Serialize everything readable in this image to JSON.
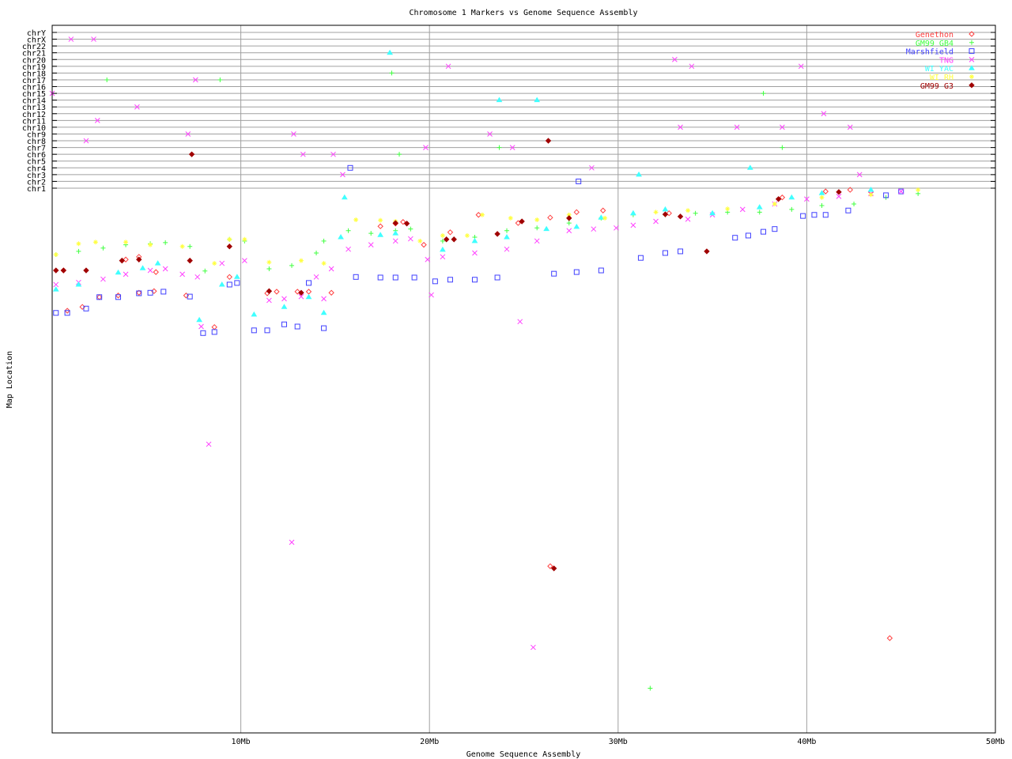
{
  "chart_data": {
    "type": "scatter",
    "title": "Chromosome 1 Markers vs Genome Sequence Assembly",
    "xlabel": "Genome Sequence Assembly",
    "ylabel": "Map Location",
    "xlim": [
      0,
      50
    ],
    "x_ticks": [
      {
        "v": 10,
        "label": "10Mb"
      },
      {
        "v": 20,
        "label": "20Mb"
      },
      {
        "v": 30,
        "label": "30Mb"
      },
      {
        "v": 40,
        "label": "40Mb"
      },
      {
        "v": 50,
        "label": "50Mb"
      }
    ],
    "ylim": [
      0,
      100
    ],
    "y_categories": [
      "chr1",
      "chr2",
      "chr3",
      "chr4",
      "chr5",
      "chr6",
      "chr7",
      "chr8",
      "chr9",
      "chr10",
      "chr11",
      "chr12",
      "chr13",
      "chr14",
      "chr15",
      "chr16",
      "chr17",
      "chr18",
      "chr19",
      "chr20",
      "chr21",
      "chr22",
      "chrX",
      "chrY"
    ],
    "grid": true,
    "legend_position": "top-right",
    "series": [
      {
        "name": "Genethon",
        "color": "#ff4040",
        "marker": "diamond",
        "points": [
          [
            0.6,
            15.1
          ],
          [
            3.9,
            13.1
          ],
          [
            4.6,
            12.6
          ],
          [
            5.5,
            15.4
          ],
          [
            7.1,
            19.7
          ],
          [
            8.6,
            25.5
          ],
          [
            9.4,
            16.3
          ],
          [
            11.4,
            19.3
          ],
          [
            11.9,
            19.0
          ],
          [
            13.0,
            19.0
          ],
          [
            13.6,
            19.0
          ],
          [
            14.8,
            19.2
          ],
          [
            17.4,
            7.0
          ],
          [
            18.2,
            6.5
          ],
          [
            18.6,
            6.2
          ],
          [
            19.7,
            10.4
          ],
          [
            21.1,
            8.1
          ],
          [
            22.6,
            4.9
          ],
          [
            24.7,
            6.4
          ],
          [
            26.4,
            5.4
          ],
          [
            27.8,
            4.4
          ],
          [
            29.2,
            4.1
          ],
          [
            32.7,
            4.6
          ],
          [
            38.7,
            1.7
          ],
          [
            41.0,
            0.6
          ],
          [
            42.3,
            0.3
          ],
          [
            43.4,
            0.7
          ],
          [
            44.4,
            82.6
          ],
          [
            0.8,
            22.5
          ],
          [
            1.6,
            21.8
          ],
          [
            2.5,
            20.0
          ],
          [
            3.5,
            19.7
          ],
          [
            4.6,
            19.2
          ],
          [
            5.4,
            18.9
          ],
          [
            26.4,
            69.4
          ]
        ]
      },
      {
        "name": "GM99 GB4",
        "color": "#40ff40",
        "marker": "plus",
        "points": [
          [
            0.2,
            12.2
          ],
          [
            1.4,
            11.6
          ],
          [
            2.7,
            11.0
          ],
          [
            3.9,
            10.4
          ],
          [
            5.2,
            10.2
          ],
          [
            6.0,
            10.0
          ],
          [
            7.3,
            10.7
          ],
          [
            8.1,
            15.2
          ],
          [
            9.4,
            9.4
          ],
          [
            10.2,
            9.7
          ],
          [
            11.5,
            14.8
          ],
          [
            12.7,
            14.2
          ],
          [
            14.0,
            11.9
          ],
          [
            14.4,
            9.7
          ],
          [
            15.7,
            7.8
          ],
          [
            16.9,
            8.3
          ],
          [
            18.2,
            7.8
          ],
          [
            19.0,
            7.5
          ],
          [
            20.7,
            9.7
          ],
          [
            22.4,
            9.0
          ],
          [
            24.1,
            7.8
          ],
          [
            25.7,
            7.3
          ],
          [
            27.4,
            6.4
          ],
          [
            29.1,
            5.5
          ],
          [
            30.8,
            4.9
          ],
          [
            32.5,
            4.9
          ],
          [
            34.1,
            4.6
          ],
          [
            35.8,
            4.4
          ],
          [
            37.5,
            4.4
          ],
          [
            39.2,
            3.9
          ],
          [
            40.8,
            3.2
          ],
          [
            42.5,
            2.9
          ],
          [
            44.2,
            1.7
          ],
          [
            45.9,
            1.0
          ],
          [
            31.7,
            91.8
          ],
          [
            2.9,
            "chr17"
          ],
          [
            8.9,
            "chr17"
          ],
          [
            18.0,
            "chr18"
          ],
          [
            37.7,
            "chr15"
          ],
          [
            38.7,
            "chr7"
          ],
          [
            18.4,
            "chr6"
          ],
          [
            23.7,
            "chr7"
          ]
        ]
      },
      {
        "name": "Marshfield",
        "color": "#4040ff",
        "marker": "square",
        "points": [
          [
            0.2,
            22.9
          ],
          [
            0.8,
            22.9
          ],
          [
            1.8,
            22.1
          ],
          [
            2.5,
            20.0
          ],
          [
            3.5,
            20.0
          ],
          [
            4.6,
            19.3
          ],
          [
            5.2,
            19.2
          ],
          [
            5.9,
            19.0
          ],
          [
            7.3,
            19.9
          ],
          [
            8.0,
            26.6
          ],
          [
            8.6,
            26.4
          ],
          [
            9.4,
            17.7
          ],
          [
            9.8,
            17.4
          ],
          [
            10.7,
            26.1
          ],
          [
            11.4,
            26.1
          ],
          [
            12.3,
            25.0
          ],
          [
            13.0,
            25.4
          ],
          [
            13.6,
            17.4
          ],
          [
            14.4,
            25.7
          ],
          [
            16.1,
            16.3
          ],
          [
            17.4,
            16.4
          ],
          [
            18.2,
            16.4
          ],
          [
            19.2,
            16.4
          ],
          [
            20.3,
            17.1
          ],
          [
            21.1,
            16.8
          ],
          [
            22.4,
            16.8
          ],
          [
            23.6,
            16.4
          ],
          [
            26.6,
            15.7
          ],
          [
            27.8,
            15.4
          ],
          [
            29.1,
            15.1
          ],
          [
            31.2,
            12.8
          ],
          [
            32.5,
            11.9
          ],
          [
            33.3,
            11.6
          ],
          [
            36.2,
            9.1
          ],
          [
            36.9,
            8.7
          ],
          [
            37.7,
            8.0
          ],
          [
            38.3,
            7.5
          ],
          [
            39.8,
            5.1
          ],
          [
            40.4,
            4.9
          ],
          [
            41.0,
            4.9
          ],
          [
            42.2,
            4.1
          ],
          [
            44.2,
            1.3
          ],
          [
            45.0,
            0.6
          ],
          [
            15.8,
            "chr4"
          ],
          [
            27.9,
            "chr2"
          ]
        ]
      },
      {
        "name": "TNG",
        "color": "#ff40ff",
        "marker": "cross",
        "points": [
          [
            0.2,
            17.7
          ],
          [
            1.4,
            17.3
          ],
          [
            2.7,
            16.7
          ],
          [
            3.9,
            15.8
          ],
          [
            5.2,
            15.1
          ],
          [
            6.0,
            14.8
          ],
          [
            6.9,
            15.8
          ],
          [
            7.7,
            16.3
          ],
          [
            9.0,
            13.8
          ],
          [
            10.2,
            13.3
          ],
          [
            11.5,
            20.6
          ],
          [
            12.3,
            20.3
          ],
          [
            13.2,
            19.9
          ],
          [
            14.0,
            16.3
          ],
          [
            14.8,
            14.8
          ],
          [
            15.7,
            11.2
          ],
          [
            16.9,
            10.4
          ],
          [
            18.2,
            9.7
          ],
          [
            19.0,
            9.3
          ],
          [
            19.9,
            13.1
          ],
          [
            20.7,
            12.6
          ],
          [
            22.4,
            11.9
          ],
          [
            24.1,
            11.2
          ],
          [
            25.7,
            9.7
          ],
          [
            27.4,
            7.8
          ],
          [
            28.7,
            7.5
          ],
          [
            29.9,
            7.3
          ],
          [
            30.8,
            6.8
          ],
          [
            32.0,
            6.1
          ],
          [
            33.7,
            5.7
          ],
          [
            35.0,
            4.9
          ],
          [
            36.6,
            3.9
          ],
          [
            38.3,
            2.9
          ],
          [
            40.0,
            2.0
          ],
          [
            41.7,
            1.5
          ],
          [
            43.4,
            1.0
          ],
          [
            45.0,
            0.6
          ],
          [
            8.3,
            47.0
          ],
          [
            12.7,
            65.0
          ],
          [
            24.8,
            24.5
          ],
          [
            25.5,
            84.3
          ],
          [
            20.1,
            19.6
          ],
          [
            7.9,
            25.4
          ],
          [
            14.4,
            20.3
          ],
          [
            1.0,
            "chrX"
          ],
          [
            2.2,
            "chrX"
          ],
          [
            0.0,
            "chr15"
          ],
          [
            4.5,
            "chr13"
          ],
          [
            2.4,
            "chr11"
          ],
          [
            1.8,
            "chr8"
          ],
          [
            7.6,
            "chr17"
          ],
          [
            33.0,
            "chr20"
          ],
          [
            33.9,
            "chr19"
          ],
          [
            39.7,
            "chr19"
          ],
          [
            40.9,
            "chr12"
          ],
          [
            33.3,
            "chr10"
          ],
          [
            36.3,
            "chr10"
          ],
          [
            38.7,
            "chr10"
          ],
          [
            24.4,
            "chr7"
          ],
          [
            28.6,
            "chr4"
          ],
          [
            15.4,
            "chr3"
          ],
          [
            7.2,
            "chr9"
          ],
          [
            12.8,
            "chr9"
          ],
          [
            21.0,
            "chr19"
          ],
          [
            23.2,
            "chr9"
          ],
          [
            19.8,
            "chr7"
          ],
          [
            13.3,
            "chr6"
          ],
          [
            14.9,
            "chr6"
          ],
          [
            42.3,
            "chr10"
          ],
          [
            42.8,
            "chr3"
          ]
        ]
      },
      {
        "name": "WI YAC",
        "color": "#40ffff",
        "marker": "triangle",
        "points": [
          [
            0.2,
            18.6
          ],
          [
            1.4,
            17.7
          ],
          [
            3.5,
            15.5
          ],
          [
            4.8,
            14.7
          ],
          [
            5.6,
            13.8
          ],
          [
            7.8,
            24.2
          ],
          [
            9.0,
            17.7
          ],
          [
            9.8,
            16.3
          ],
          [
            10.7,
            23.2
          ],
          [
            12.3,
            21.8
          ],
          [
            13.6,
            20.0
          ],
          [
            14.4,
            22.9
          ],
          [
            15.3,
            9.0
          ],
          [
            15.5,
            1.7
          ],
          [
            17.4,
            8.6
          ],
          [
            18.2,
            8.3
          ],
          [
            20.7,
            11.3
          ],
          [
            22.4,
            9.7
          ],
          [
            24.1,
            9.0
          ],
          [
            26.2,
            7.5
          ],
          [
            27.8,
            7.1
          ],
          [
            29.1,
            5.4
          ],
          [
            30.8,
            4.6
          ],
          [
            32.5,
            3.9
          ],
          [
            35.0,
            4.6
          ],
          [
            37.5,
            3.5
          ],
          [
            39.2,
            1.7
          ],
          [
            40.8,
            0.9
          ],
          [
            43.4,
            0.3
          ],
          [
            17.9,
            "chr21"
          ],
          [
            23.7,
            "chr14"
          ],
          [
            25.7,
            "chr14"
          ],
          [
            31.1,
            "chr3"
          ],
          [
            37.0,
            "chr4"
          ]
        ]
      },
      {
        "name": "WI RH",
        "color": "#ffff40",
        "marker": "star",
        "points": [
          [
            0.2,
            12.2
          ],
          [
            1.4,
            10.2
          ],
          [
            2.3,
            9.9
          ],
          [
            3.9,
            9.9
          ],
          [
            5.2,
            10.4
          ],
          [
            6.9,
            10.7
          ],
          [
            8.6,
            13.8
          ],
          [
            9.4,
            9.4
          ],
          [
            10.2,
            9.4
          ],
          [
            11.5,
            13.6
          ],
          [
            13.2,
            13.3
          ],
          [
            14.4,
            13.8
          ],
          [
            16.1,
            5.8
          ],
          [
            17.4,
            5.9
          ],
          [
            18.2,
            6.1
          ],
          [
            19.5,
            9.7
          ],
          [
            20.7,
            8.7
          ],
          [
            22.0,
            8.7
          ],
          [
            22.8,
            4.9
          ],
          [
            24.3,
            5.5
          ],
          [
            25.7,
            5.8
          ],
          [
            27.4,
            4.9
          ],
          [
            29.3,
            5.5
          ],
          [
            32.0,
            4.4
          ],
          [
            33.7,
            4.1
          ],
          [
            35.8,
            3.8
          ],
          [
            38.3,
            2.9
          ],
          [
            40.8,
            1.7
          ],
          [
            43.4,
            1.2
          ],
          [
            45.9,
            0.3
          ]
        ]
      },
      {
        "name": "GM99 G3",
        "color": "#a00000",
        "marker": "diamond",
        "points": [
          [
            0.2,
            15.1
          ],
          [
            0.6,
            15.1
          ],
          [
            1.8,
            15.1
          ],
          [
            3.7,
            13.3
          ],
          [
            4.6,
            13.1
          ],
          [
            7.3,
            13.3
          ],
          [
            9.4,
            10.7
          ],
          [
            11.5,
            18.9
          ],
          [
            13.2,
            19.2
          ],
          [
            18.2,
            6.4
          ],
          [
            18.8,
            6.5
          ],
          [
            20.9,
            9.4
          ],
          [
            21.3,
            9.4
          ],
          [
            23.6,
            8.4
          ],
          [
            24.9,
            6.1
          ],
          [
            27.4,
            5.5
          ],
          [
            32.5,
            4.8
          ],
          [
            33.3,
            5.2
          ],
          [
            34.7,
            11.6
          ],
          [
            38.5,
            2.0
          ],
          [
            41.7,
            0.7
          ],
          [
            26.6,
            69.8
          ],
          [
            26.3,
            "chr8"
          ],
          [
            7.4,
            "chr6"
          ]
        ]
      }
    ]
  }
}
